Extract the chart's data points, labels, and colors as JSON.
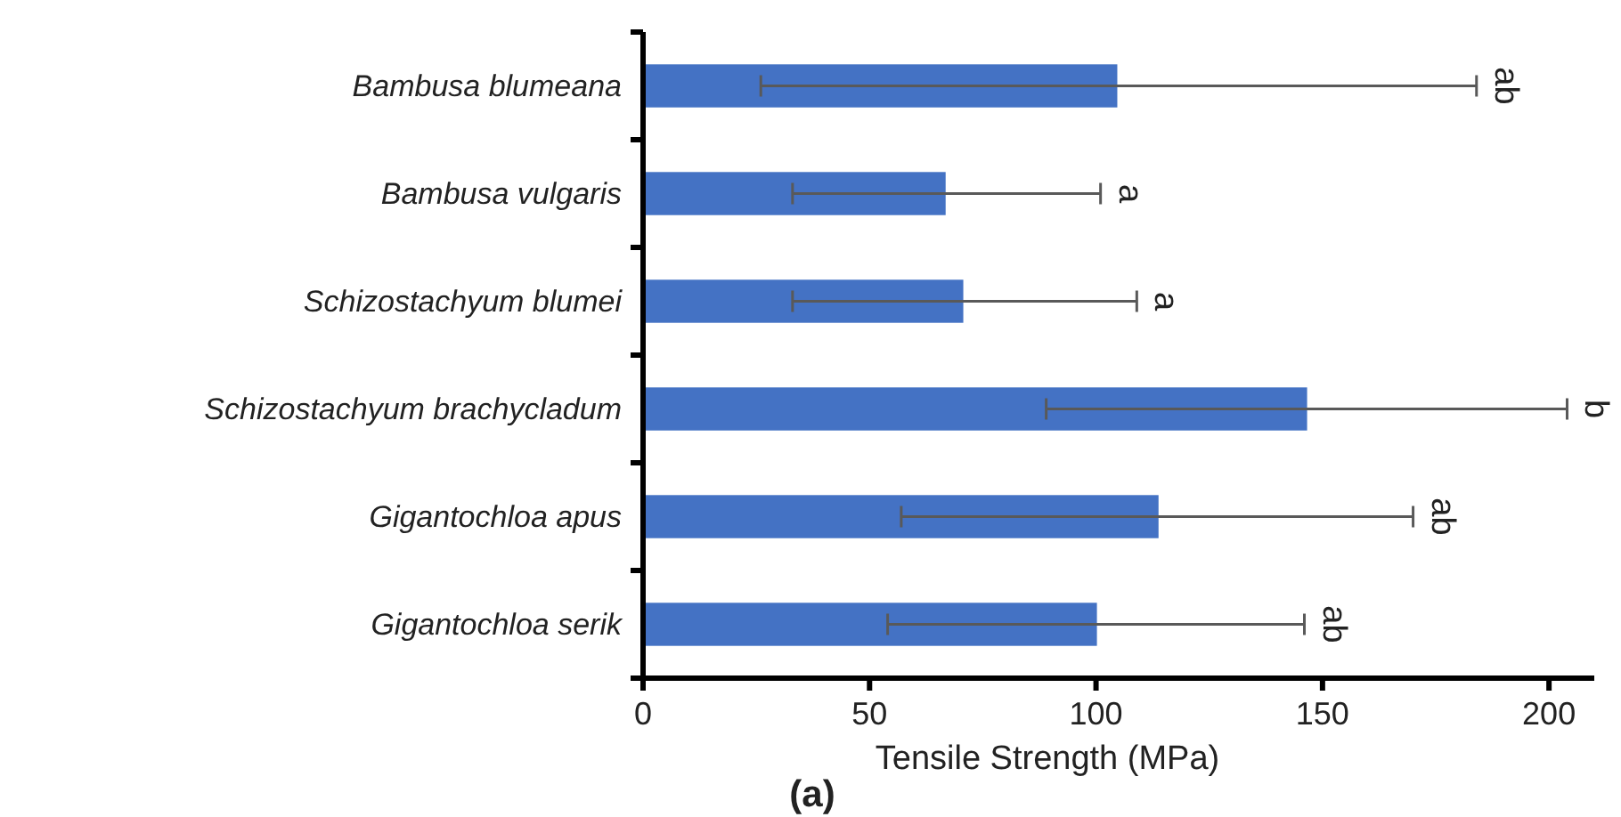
{
  "chart_data": {
    "type": "bar",
    "orientation": "horizontal",
    "title": "(a)",
    "xlabel": "Tensile Strength (MPa)",
    "categories": [
      "Bambusa blumeana",
      "Bambusa vulgaris",
      "Schizostachyum blumei",
      "Schizostachyum brachycladum",
      "Gigantochloa apus",
      "Gigantochloa serik"
    ],
    "values": [
      104.7,
      66.8,
      70.7,
      146.6,
      113.8,
      100.2
    ],
    "errors": [
      [
        26,
        184
      ],
      [
        33,
        101
      ],
      [
        33,
        109
      ],
      [
        89,
        204
      ],
      [
        57,
        170
      ],
      [
        54,
        146
      ]
    ],
    "color": "#4472c4",
    "xlim": [
      0,
      210
    ],
    "xticks": [
      0,
      50,
      100,
      150,
      200
    ],
    "grid": false,
    "annotations": [
      "ab",
      "a",
      "a",
      "b",
      "ab",
      "ab"
    ]
  }
}
